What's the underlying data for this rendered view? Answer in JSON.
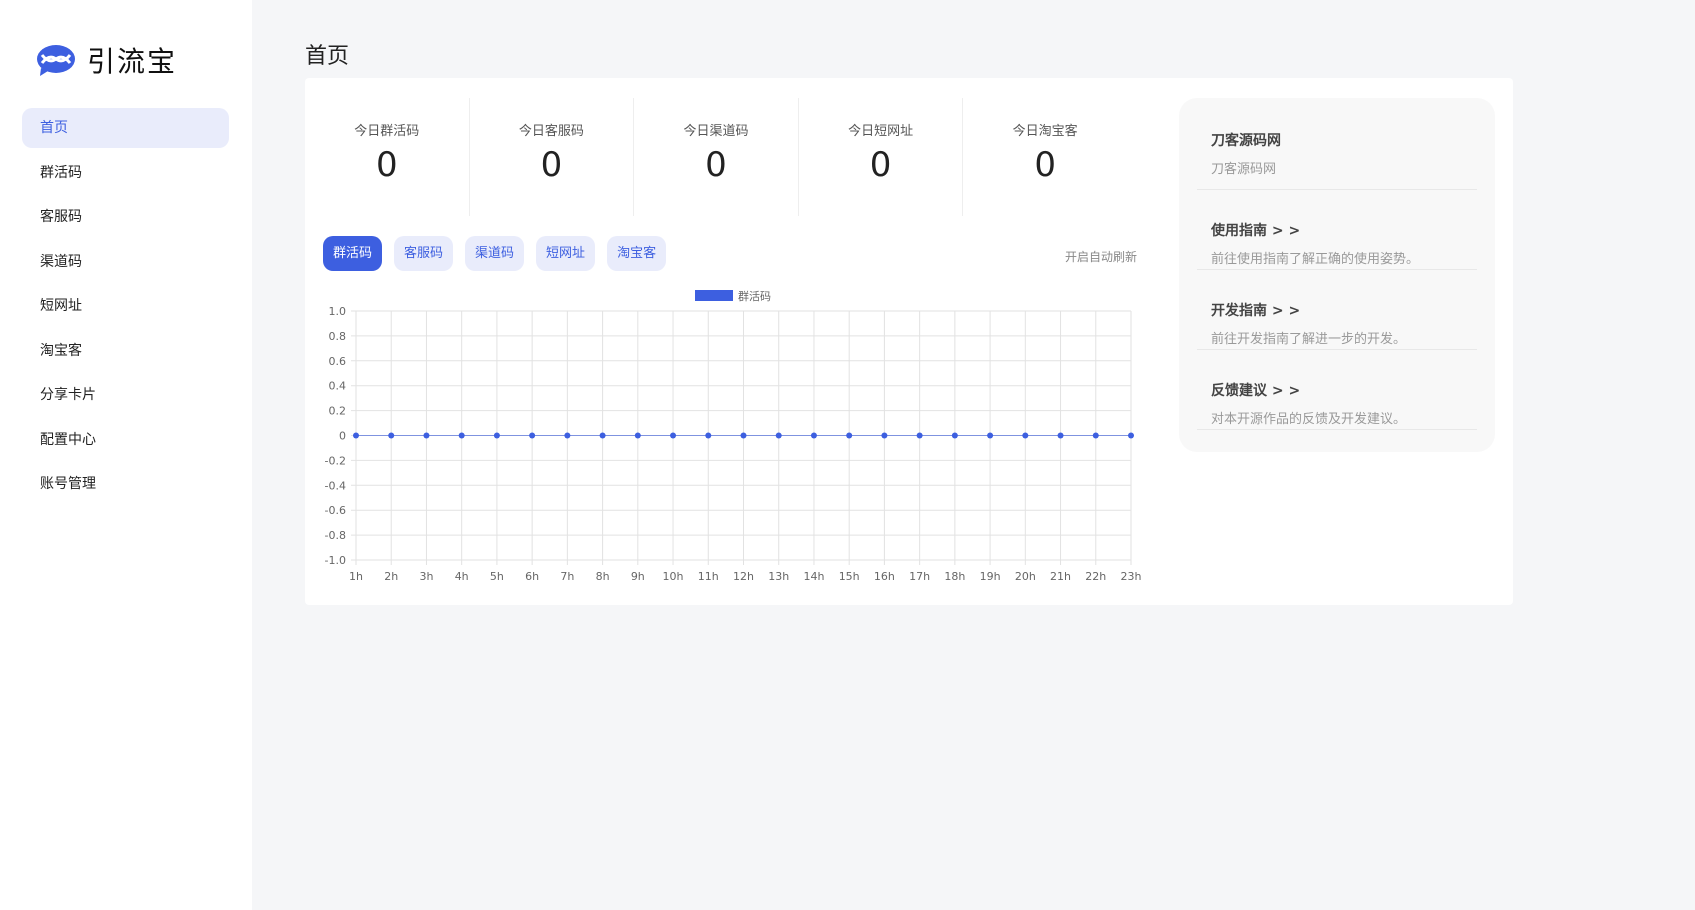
{
  "app": {
    "name": "引流宝",
    "brand_color": "#3d5fe0"
  },
  "sidebar": {
    "items": [
      {
        "label": "首页",
        "active": true
      },
      {
        "label": "群活码"
      },
      {
        "label": "客服码"
      },
      {
        "label": "渠道码"
      },
      {
        "label": "短网址"
      },
      {
        "label": "淘宝客"
      },
      {
        "label": "分享卡片"
      },
      {
        "label": "配置中心"
      },
      {
        "label": "账号管理"
      }
    ]
  },
  "header": {
    "title": "首页"
  },
  "stats": [
    {
      "label": "今日群活码",
      "value": "0"
    },
    {
      "label": "今日客服码",
      "value": "0"
    },
    {
      "label": "今日渠道码",
      "value": "0"
    },
    {
      "label": "今日短网址",
      "value": "0"
    },
    {
      "label": "今日淘宝客",
      "value": "0"
    }
  ],
  "tabs": [
    {
      "label": "群活码",
      "active": true
    },
    {
      "label": "客服码"
    },
    {
      "label": "渠道码"
    },
    {
      "label": "短网址"
    },
    {
      "label": "淘宝客"
    }
  ],
  "auto_refresh_label": "开启自动刷新",
  "chart_data": {
    "type": "line",
    "legend_position": "top",
    "grid": true,
    "x": [
      "1h",
      "2h",
      "3h",
      "4h",
      "5h",
      "6h",
      "7h",
      "8h",
      "9h",
      "10h",
      "11h",
      "12h",
      "13h",
      "14h",
      "15h",
      "16h",
      "17h",
      "18h",
      "19h",
      "20h",
      "21h",
      "22h",
      "23h"
    ],
    "series": [
      {
        "name": "群活码",
        "color": "#3d5fe0",
        "values": [
          0,
          0,
          0,
          0,
          0,
          0,
          0,
          0,
          0,
          0,
          0,
          0,
          0,
          0,
          0,
          0,
          0,
          0,
          0,
          0,
          0,
          0,
          0
        ]
      }
    ],
    "ylim": [
      -1.0,
      1.0
    ],
    "yticks": [
      "1.0",
      "0.8",
      "0.6",
      "0.4",
      "0.2",
      "0",
      "-0.2",
      "-0.4",
      "-0.6",
      "-0.8",
      "-1.0"
    ]
  },
  "side_panel": [
    {
      "title": "刀客源码网",
      "desc": "刀客源码网"
    },
    {
      "title": "使用指南 > >",
      "desc": "前往使用指南了解正确的使用姿势。"
    },
    {
      "title": "开发指南 > >",
      "desc": "前往开发指南了解进一步的开发。"
    },
    {
      "title": "反馈建议 > >",
      "desc": "对本开源作品的反馈及开发建议。"
    }
  ]
}
